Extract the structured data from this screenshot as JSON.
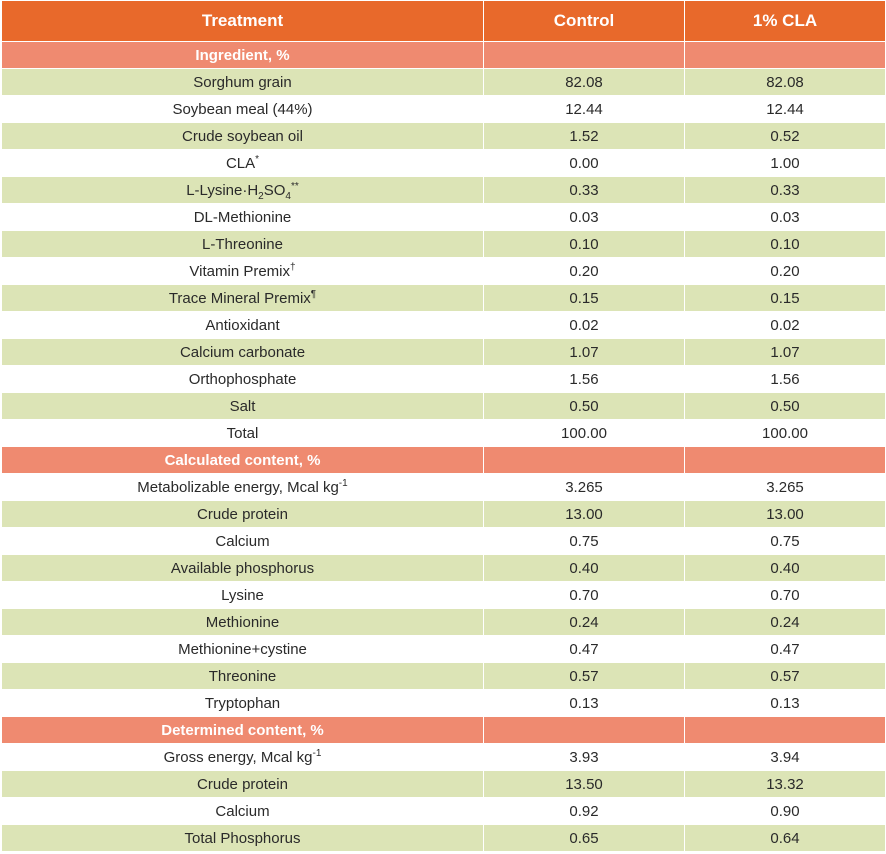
{
  "header": {
    "treatment": "Treatment",
    "control": "Control",
    "cla": "1% CLA"
  },
  "ingredients": {
    "title": "Ingredient, %",
    "rows": [
      {
        "name": "Sorghum grain",
        "control": "82.08",
        "cla": "82.08"
      },
      {
        "name": "Soybean meal (44%)",
        "control": "12.44",
        "cla": "12.44"
      },
      {
        "name": "Crude soybean oil",
        "control": "1.52",
        "cla": "0.52"
      },
      {
        "name": "CLA",
        "sup": "*",
        "control": "0.00",
        "cla": "1.00"
      },
      {
        "name_a": "L-Lysine·H",
        "sub_a": "2",
        "name_b": "SO",
        "sub_b": "4",
        "sup": "**",
        "control": "0.33",
        "cla": "0.33"
      },
      {
        "name": "DL-Methionine",
        "control": "0.03",
        "cla": "0.03"
      },
      {
        "name": "L-Threonine",
        "control": "0.10",
        "cla": "0.10"
      },
      {
        "name": "Vitamin Premix",
        "sup": "†",
        "control": "0.20",
        "cla": "0.20"
      },
      {
        "name": "Trace Mineral Premix",
        "sup": "¶",
        "control": "0.15",
        "cla": "0.15"
      },
      {
        "name": "Antioxidant",
        "control": "0.02",
        "cla": "0.02"
      },
      {
        "name": "Calcium carbonate",
        "control": "1.07",
        "cla": "1.07"
      },
      {
        "name": "Orthophosphate",
        "control": "1.56",
        "cla": "1.56"
      },
      {
        "name": "Salt",
        "control": "0.50",
        "cla": "0.50"
      },
      {
        "name": "Total",
        "control": "100.00",
        "cla": "100.00"
      }
    ]
  },
  "calculated": {
    "title": "Calculated content, %",
    "rows": [
      {
        "name": "Metabolizable energy, Mcal kg",
        "sup": "-1",
        "control": "3.265",
        "cla": "3.265"
      },
      {
        "name": "Crude protein",
        "control": "13.00",
        "cla": "13.00"
      },
      {
        "name": "Calcium",
        "control": "0.75",
        "cla": "0.75"
      },
      {
        "name": "Available phosphorus",
        "control": "0.40",
        "cla": "0.40"
      },
      {
        "name": "Lysine",
        "control": "0.70",
        "cla": "0.70"
      },
      {
        "name": "Methionine",
        "control": "0.24",
        "cla": "0.24"
      },
      {
        "name": "Methionine+cystine",
        "control": "0.47",
        "cla": "0.47"
      },
      {
        "name": "Threonine",
        "control": "0.57",
        "cla": "0.57"
      },
      {
        "name": "Tryptophan",
        "control": "0.13",
        "cla": "0.13"
      }
    ]
  },
  "determined": {
    "title": "Determined content, %",
    "rows": [
      {
        "name": "Gross energy, Mcal kg",
        "sup": "-1",
        "control": "3.93",
        "cla": "3.94"
      },
      {
        "name": "Crude protein",
        "control": "13.50",
        "cla": "13.32"
      },
      {
        "name": "Calcium",
        "control": "0.92",
        "cla": "0.90"
      },
      {
        "name": "Total Phosphorus",
        "control": "0.65",
        "cla": "0.64"
      }
    ]
  }
}
